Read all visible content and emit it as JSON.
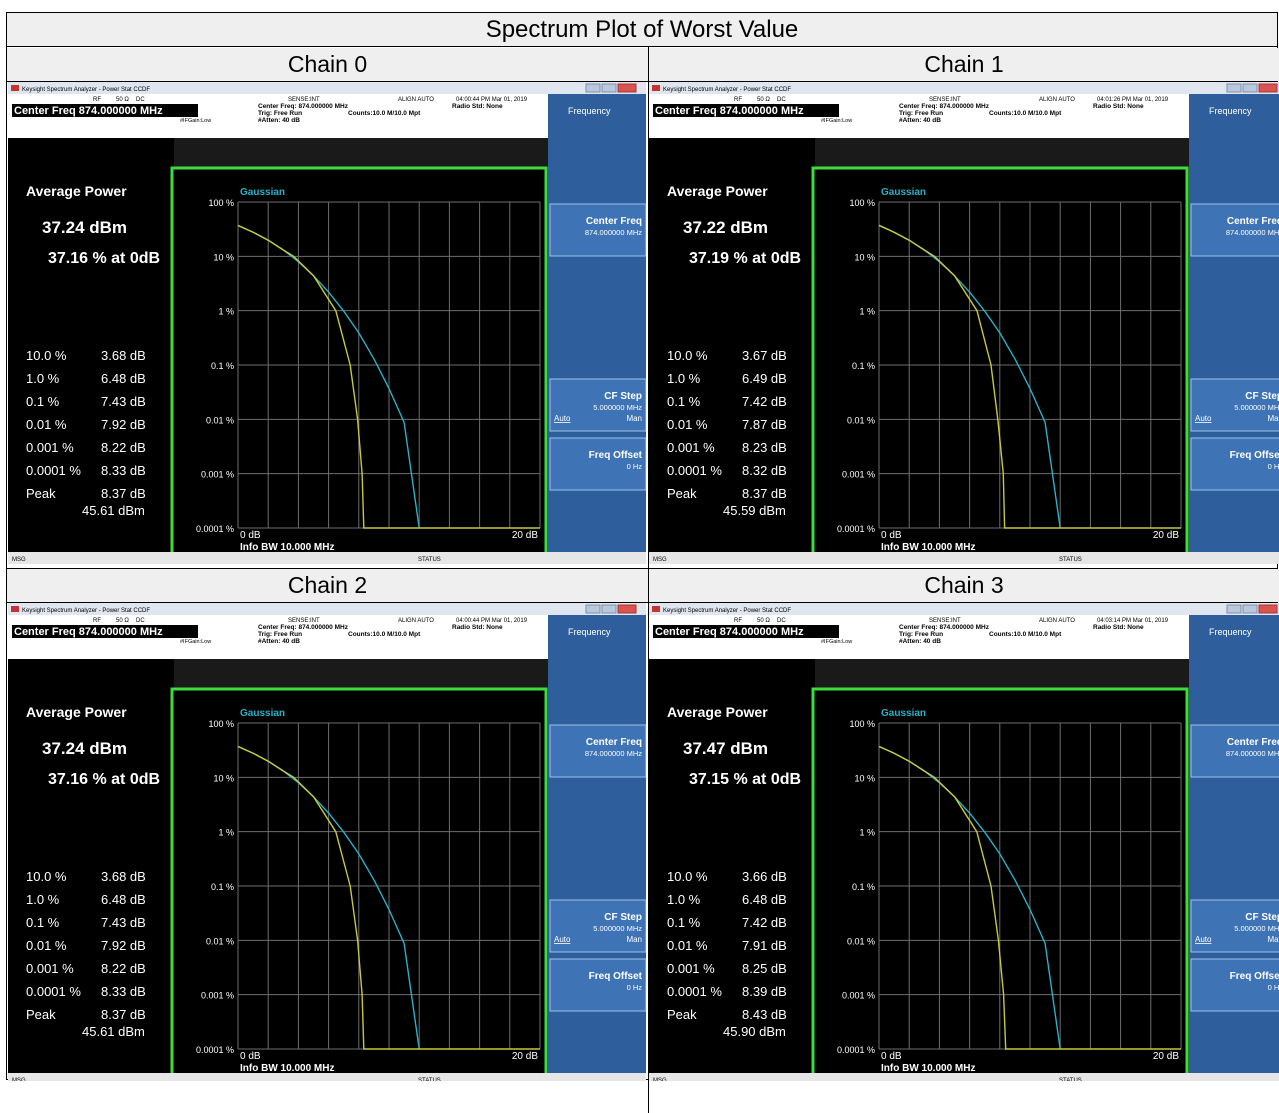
{
  "page_title": "Spectrum Plot of Worst Value",
  "common": {
    "window_title": "Keysight Spectrum Analyzer - Power Stat CCDF",
    "rf": "RF",
    "ohm": "50 Ω",
    "dc": "DC",
    "sense": "SENSE:INT",
    "align": "ALIGN AUTO",
    "center_freq_big": "Center Freq 874.000000 MHz",
    "center_freq_small": "Center Freq: 874.000000 MHz",
    "trig": "Trig: Free Run",
    "atten": "#Atten: 40 dB",
    "ifgain": "#IFGain:Low",
    "counts": "Counts:10.0 M/10.0 Mpt",
    "radio_std": "Radio Std: None",
    "avg_power_label": "Average Power",
    "gaussian_label": "Gaussian",
    "y_ticks": [
      "100 %",
      "10 %",
      "1 %",
      "0.1 %",
      "0.01 %",
      "0.001 %",
      "0.0001 %"
    ],
    "x_start": "0 dB",
    "x_end": "20 dB",
    "info_bw": "Info BW 10.000 MHz",
    "row_labels": [
      "10.0 %",
      "1.0 %",
      "0.1 %",
      "0.01 %",
      "0.001 %",
      "0.0001 %",
      "Peak"
    ],
    "softkeys": {
      "frequency": "Frequency",
      "center_freq": "Center Freq",
      "center_freq_val": "874.000000 MHz",
      "cf_step": "CF Step",
      "cf_step_val": "5.000000 MHz",
      "auto": "Auto",
      "man": "Man",
      "freq_offset": "Freq Offset",
      "freq_offset_val": "0 Hz"
    },
    "msg": "MSG",
    "status": "STATUS",
    "colors": {
      "measured": "#c8c83a",
      "gaussian": "#2ab0c8",
      "panel_bg": "#000000",
      "softkey_bg": "#2e5f9c",
      "frame_green": "#3cdc3c"
    }
  },
  "chains": [
    {
      "title": "Chain 0",
      "timestamp": "04:00:44 PM Mar 01, 2019",
      "avg_dbm": "37.24 dBm",
      "pct_at_0db": "37.16 % at 0dB",
      "row_values": [
        "3.68 dB",
        "6.48 dB",
        "7.43 dB",
        "7.92 dB",
        "8.22 dB",
        "8.33 dB",
        "8.37 dB"
      ],
      "peak_dbm": "45.61 dBm"
    },
    {
      "title": "Chain 1",
      "timestamp": "04:01:26 PM Mar 01, 2019",
      "avg_dbm": "37.22 dBm",
      "pct_at_0db": "37.19 % at 0dB",
      "row_values": [
        "3.67 dB",
        "6.49 dB",
        "7.42 dB",
        "7.87 dB",
        "8.23 dB",
        "8.32 dB",
        "8.37 dB"
      ],
      "peak_dbm": "45.59 dBm"
    },
    {
      "title": "Chain 2",
      "timestamp": "04:00:44 PM Mar 01, 2019",
      "avg_dbm": "37.24 dBm",
      "pct_at_0db": "37.16 % at 0dB",
      "row_values": [
        "3.68 dB",
        "6.48 dB",
        "7.43 dB",
        "7.92 dB",
        "8.22 dB",
        "8.33 dB",
        "8.37 dB"
      ],
      "peak_dbm": "45.61 dBm"
    },
    {
      "title": "Chain 3",
      "timestamp": "04:03:14 PM Mar 01, 2019",
      "avg_dbm": "37.47 dBm",
      "pct_at_0db": "37.15 % at 0dB",
      "row_values": [
        "3.66 dB",
        "6.48 dB",
        "7.42 dB",
        "7.91 dB",
        "8.25 dB",
        "8.39 dB",
        "8.43 dB"
      ],
      "peak_dbm": "45.90 dBm"
    }
  ],
  "chart_data": [
    {
      "type": "line",
      "title": "Chain 0",
      "xlim": [
        0,
        20
      ],
      "ylim": [
        0.0001,
        100
      ],
      "y_scale": "log",
      "series": [
        {
          "name": "Gaussian",
          "x": [
            0,
            1,
            2,
            3,
            4,
            5,
            6,
            7,
            8,
            9,
            10,
            11,
            12
          ],
          "y": [
            36.79,
            27.8,
            19.8,
            13.1,
            7.96,
            4.4,
            2.2,
            0.98,
            0.39,
            0.13,
            0.037,
            0.0088,
            0.0001
          ]
        },
        {
          "x": [
            0,
            1,
            2,
            3,
            3.68,
            5,
            6.48,
            7.43,
            7.92,
            8.22,
            8.33,
            8.37,
            20
          ],
          "y": [
            37.16,
            27.8,
            19.8,
            13.1,
            10,
            4.4,
            1,
            0.1,
            0.01,
            0.001,
            0.0001,
            0.0001,
            0.0001
          ]
        }
      ]
    },
    {
      "type": "line",
      "title": "Chain 1",
      "xlim": [
        0,
        20
      ],
      "ylim": [
        0.0001,
        100
      ],
      "y_scale": "log",
      "series": [
        {
          "name": "Gaussian",
          "x": [
            0,
            1,
            2,
            3,
            4,
            5,
            6,
            7,
            8,
            9,
            10,
            11,
            12
          ],
          "y": [
            36.79,
            27.8,
            19.8,
            13.1,
            7.96,
            4.4,
            2.2,
            0.98,
            0.39,
            0.13,
            0.037,
            0.0088,
            0.0001
          ]
        },
        {
          "x": [
            0,
            1,
            2,
            3,
            3.67,
            5,
            6.49,
            7.42,
            7.87,
            8.23,
            8.32,
            8.37,
            20
          ],
          "y": [
            37.19,
            27.8,
            19.8,
            13.1,
            10,
            4.4,
            1,
            0.1,
            0.01,
            0.001,
            0.0001,
            0.0001,
            0.0001
          ]
        }
      ]
    },
    {
      "type": "line",
      "title": "Chain 2",
      "xlim": [
        0,
        20
      ],
      "ylim": [
        0.0001,
        100
      ],
      "y_scale": "log",
      "series": [
        {
          "name": "Gaussian",
          "x": [
            0,
            1,
            2,
            3,
            4,
            5,
            6,
            7,
            8,
            9,
            10,
            11,
            12
          ],
          "y": [
            36.79,
            27.8,
            19.8,
            13.1,
            7.96,
            4.4,
            2.2,
            0.98,
            0.39,
            0.13,
            0.037,
            0.0088,
            0.0001
          ]
        },
        {
          "x": [
            0,
            1,
            2,
            3,
            3.68,
            5,
            6.48,
            7.43,
            7.92,
            8.22,
            8.33,
            8.37,
            20
          ],
          "y": [
            37.16,
            27.8,
            19.8,
            13.1,
            10,
            4.4,
            1,
            0.1,
            0.01,
            0.001,
            0.0001,
            0.0001,
            0.0001
          ]
        }
      ]
    },
    {
      "type": "line",
      "title": "Chain 3",
      "xlim": [
        0,
        20
      ],
      "ylim": [
        0.0001,
        100
      ],
      "y_scale": "log",
      "series": [
        {
          "name": "Gaussian",
          "x": [
            0,
            1,
            2,
            3,
            4,
            5,
            6,
            7,
            8,
            9,
            10,
            11,
            12
          ],
          "y": [
            36.79,
            27.8,
            19.8,
            13.1,
            7.96,
            4.4,
            2.2,
            0.98,
            0.39,
            0.13,
            0.037,
            0.0088,
            0.0001
          ]
        },
        {
          "x": [
            0,
            1,
            2,
            3,
            3.66,
            5,
            6.48,
            7.42,
            7.91,
            8.25,
            8.39,
            8.43,
            20
          ],
          "y": [
            37.15,
            27.8,
            19.8,
            13.1,
            10,
            4.4,
            1,
            0.1,
            0.01,
            0.001,
            0.0001,
            0.0001,
            0.0001
          ]
        }
      ]
    }
  ]
}
